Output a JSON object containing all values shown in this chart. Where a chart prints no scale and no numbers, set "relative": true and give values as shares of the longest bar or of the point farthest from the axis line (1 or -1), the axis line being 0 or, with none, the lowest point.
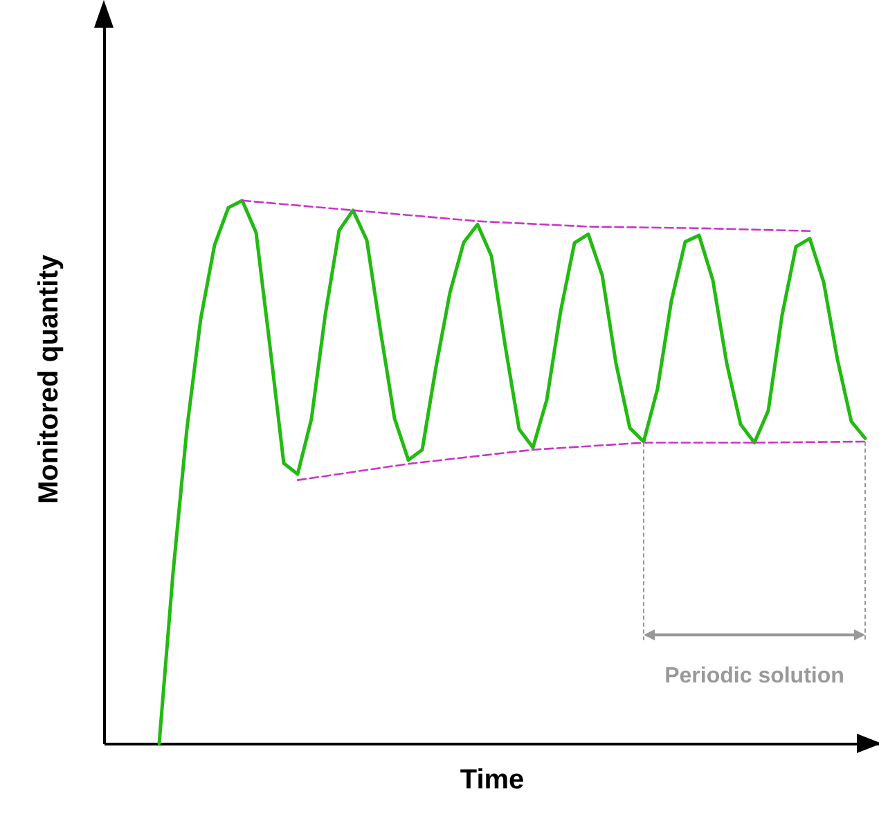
{
  "chart_data": {
    "type": "line",
    "xlabel": "Time",
    "ylabel": "Monitored quantity",
    "relative": true,
    "categories": [
      null,
      null,
      null,
      null,
      null,
      null,
      null,
      null,
      null,
      null,
      null,
      null,
      null,
      null,
      null,
      null,
      null,
      null,
      null,
      null,
      null,
      null,
      null,
      null,
      null,
      null,
      null,
      null,
      null,
      null,
      null,
      null,
      null,
      null,
      null,
      null,
      null,
      null,
      null,
      null,
      null,
      null,
      null,
      null,
      null,
      null,
      null,
      null,
      null,
      null,
      null,
      null,
      null,
      null,
      null,
      null,
      null
    ],
    "series": [
      {
        "color": "#22bb11",
        "line_style": "solid",
        "values": [
          null,
          null,
          null,
          null,
          0,
          0.314,
          0.579,
          0.782,
          0.918,
          0.987,
          1,
          0.941,
          0.732,
          0.516,
          0.496,
          0.598,
          0.79,
          0.945,
          0.982,
          0.927,
          0.758,
          0.599,
          0.522,
          0.541,
          0.694,
          0.83,
          0.923,
          0.956,
          0.898,
          0.732,
          0.579,
          0.545,
          0.633,
          0.796,
          0.922,
          0.938,
          0.863,
          0.7,
          0.581,
          0.556,
          0.653,
          0.815,
          0.924,
          0.936,
          0.853,
          0.7,
          0.588,
          0.554,
          0.613,
          0.789,
          0.915,
          0.93,
          0.85,
          0.707,
          0.593,
          0.562,
          null
        ]
      },
      {
        "color": "#cc33cc",
        "line_style": "dashed",
        "values": [
          null,
          null,
          null,
          null,
          null,
          null,
          null,
          null,
          null,
          null,
          1,
          null,
          null,
          null,
          null,
          null,
          null,
          null,
          null,
          null,
          null,
          null,
          null,
          null,
          null,
          null,
          null,
          0.962,
          null,
          null,
          null,
          null,
          null,
          null,
          null,
          0.952,
          null,
          null,
          null,
          null,
          null,
          null,
          null,
          0.949,
          null,
          null,
          null,
          null,
          null,
          null,
          null,
          0.944,
          null,
          null,
          null,
          null,
          null
        ]
      },
      {
        "color": "#cc33cc",
        "line_style": "dashed",
        "values": [
          null,
          null,
          null,
          null,
          null,
          null,
          null,
          null,
          null,
          null,
          null,
          null,
          null,
          null,
          0.485,
          null,
          null,
          null,
          null,
          null,
          null,
          null,
          0.515,
          null,
          null,
          null,
          null,
          null,
          null,
          null,
          null,
          0.541,
          null,
          null,
          null,
          null,
          null,
          null,
          null,
          0.554,
          null,
          null,
          null,
          null,
          null,
          null,
          null,
          0.554,
          null,
          null,
          null,
          null,
          null,
          null,
          null,
          0.556,
          null
        ]
      }
    ],
    "annotations": [
      "Periodic solution"
    ]
  }
}
